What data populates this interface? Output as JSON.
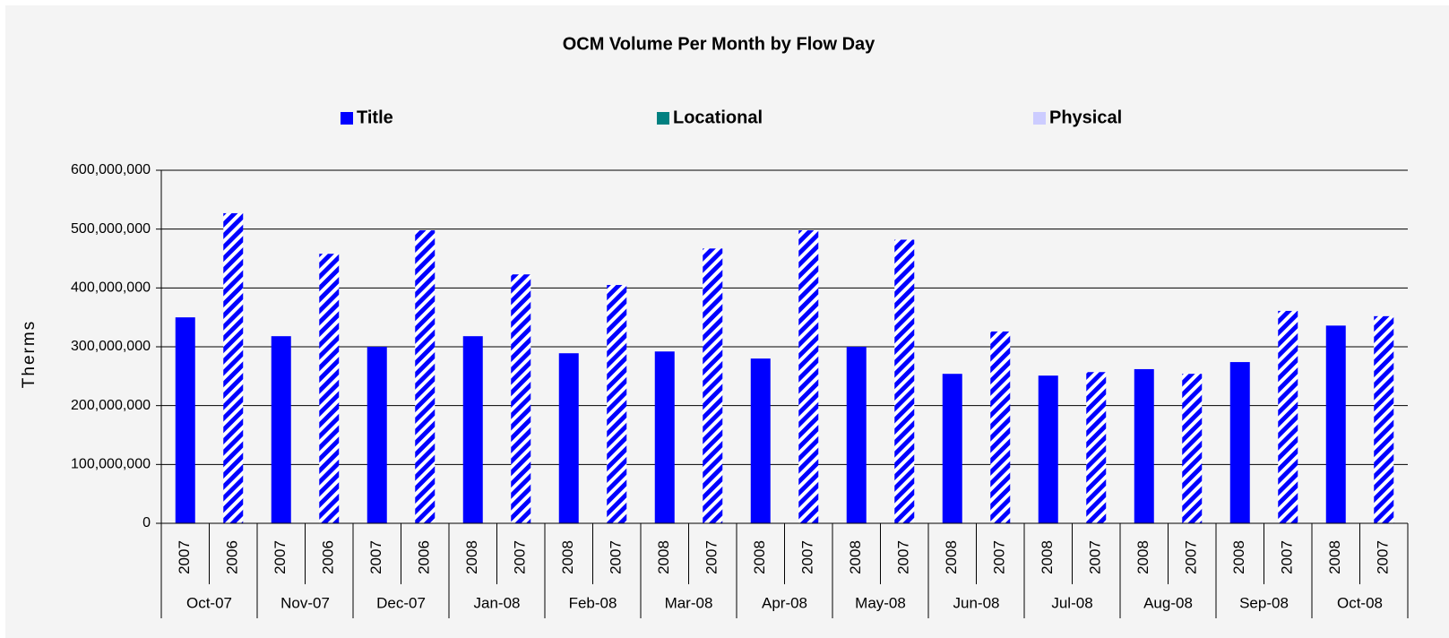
{
  "chart_data": {
    "type": "grouped_bar",
    "title": "OCM Volume Per Month by Flow Day",
    "y_label": "Therms",
    "legend": [
      {
        "name": "Title",
        "color": "#0000ff"
      },
      {
        "name": "Locational",
        "color": "#008080"
      },
      {
        "name": "Physical",
        "color": "#ccccff"
      }
    ],
    "categories": [
      "Oct-07",
      "Nov-07",
      "Dec-07",
      "Jan-08",
      "Feb-08",
      "Mar-08",
      "Apr-08",
      "May-08",
      "Jun-08",
      "Jul-08",
      "Aug-08",
      "Sep-08",
      "Oct-08"
    ],
    "series": [
      {
        "pattern": "solid",
        "color": "#0000ff",
        "labels": [
          "2007",
          "2007",
          "2007",
          "2008",
          "2008",
          "2008",
          "2008",
          "2008",
          "2008",
          "2008",
          "2008",
          "2008",
          "2008"
        ],
        "values": [
          350000000,
          318000000,
          300000000,
          318000000,
          289000000,
          292000000,
          280000000,
          300000000,
          254000000,
          251000000,
          262000000,
          274000000,
          336000000
        ]
      },
      {
        "pattern": "hatched",
        "color": "#0000ff",
        "labels": [
          "2006",
          "2006",
          "2006",
          "2007",
          "2007",
          "2007",
          "2007",
          "2007",
          "2007",
          "2007",
          "2007",
          "2007",
          "2007"
        ],
        "values": [
          527000000,
          458000000,
          498000000,
          423000000,
          405000000,
          467000000,
          498000000,
          482000000,
          326000000,
          257000000,
          254000000,
          361000000,
          352000000
        ]
      }
    ],
    "ylim": [
      0,
      600000000
    ],
    "yticks": [
      0,
      {
        "value": 100000000,
        "label": "100,000,000"
      },
      {
        "value": 200000000,
        "label": "200,000,000"
      },
      {
        "value": 300000000,
        "label": "300,000,000"
      },
      {
        "value": 400000000,
        "label": "400,000,000"
      },
      {
        "value": 500000000,
        "label": "500,000,000"
      },
      {
        "value": 600000000,
        "label": "600,000,000"
      }
    ],
    "grid": true
  }
}
